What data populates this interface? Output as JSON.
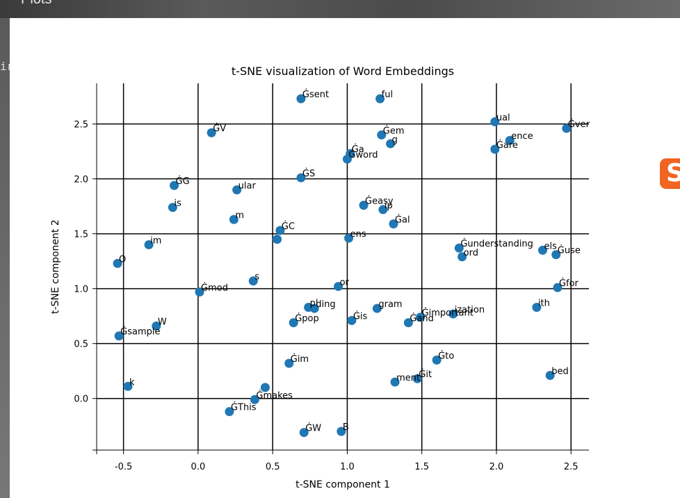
{
  "page": {
    "window_title": "Plots",
    "left_clip_text": "ir",
    "side_logo_letter": "S"
  },
  "chart_data": {
    "type": "scatter",
    "title": "t-SNE visualization of Word Embeddings",
    "xlabel": "t-SNE component 1",
    "ylabel": "t-SNE component 2",
    "xlim": [
      -0.68,
      2.62
    ],
    "ylim": [
      -0.47,
      2.87
    ],
    "xticks": [
      -0.5,
      0.0,
      0.5,
      1.0,
      1.5,
      2.0,
      2.5
    ],
    "xtick_labels": [
      "-0.5",
      "0.0",
      "0.5",
      "1.0",
      "1.5",
      "2.0",
      "2.5"
    ],
    "yticks": [
      0.0,
      0.5,
      1.0,
      1.5,
      2.0,
      2.5
    ],
    "ytick_labels": [
      "0.0",
      "0.5",
      "1.0",
      "1.5",
      "2.0",
      "2.5"
    ],
    "grid": true,
    "point_color": "#1f77b4",
    "points": [
      {
        "label": "Ġsent",
        "x": 0.69,
        "y": 2.73
      },
      {
        "label": "ful",
        "x": 1.22,
        "y": 2.73
      },
      {
        "label": "ual",
        "x": 1.99,
        "y": 2.52
      },
      {
        "label": "Ġver",
        "x": 2.47,
        "y": 2.46
      },
      {
        "label": "ĠV",
        "x": 0.09,
        "y": 2.42
      },
      {
        "label": "Ġem",
        "x": 1.23,
        "y": 2.4
      },
      {
        "label": "ence",
        "x": 2.09,
        "y": 2.35
      },
      {
        "label": "g",
        "x": 1.29,
        "y": 2.32
      },
      {
        "label": "Ġare",
        "x": 1.99,
        "y": 2.27
      },
      {
        "label": "Ġa",
        "x": 1.02,
        "y": 2.23
      },
      {
        "label": "Ġword",
        "x": 1.0,
        "y": 2.18
      },
      {
        "label": "ĠS",
        "x": 0.69,
        "y": 2.01
      },
      {
        "label": "ĠG",
        "x": -0.16,
        "y": 1.94
      },
      {
        "label": "ular",
        "x": 0.26,
        "y": 1.9
      },
      {
        "label": "Ġeasy",
        "x": 1.11,
        "y": 1.76
      },
      {
        "label": "is",
        "x": -0.17,
        "y": 1.74
      },
      {
        "label": "ip",
        "x": 1.24,
        "y": 1.72
      },
      {
        "label": "m",
        "x": 0.24,
        "y": 1.63
      },
      {
        "label": "Ġal",
        "x": 1.31,
        "y": 1.59
      },
      {
        "label": "ĠC",
        "x": 0.55,
        "y": 1.53
      },
      {
        "label": "ens",
        "x": 1.01,
        "y": 1.46
      },
      {
        "label": "",
        "x": 0.53,
        "y": 1.45
      },
      {
        "label": "im",
        "x": -0.33,
        "y": 1.4
      },
      {
        "label": "Ġunderstanding",
        "x": 1.75,
        "y": 1.37
      },
      {
        "label": "els",
        "x": 2.31,
        "y": 1.35
      },
      {
        "label": "Ġuse",
        "x": 2.4,
        "y": 1.31
      },
      {
        "label": "ord",
        "x": 1.77,
        "y": 1.29
      },
      {
        "label": "O",
        "x": -0.54,
        "y": 1.23
      },
      {
        "label": "s",
        "x": 0.37,
        "y": 1.07
      },
      {
        "label": "or",
        "x": 0.94,
        "y": 1.02
      },
      {
        "label": "Ġfor",
        "x": 2.41,
        "y": 1.01
      },
      {
        "label": "Ġmod",
        "x": 0.01,
        "y": 0.97
      },
      {
        "label": "pl",
        "x": 0.74,
        "y": 0.83
      },
      {
        "label": "ding",
        "x": 0.78,
        "y": 0.82
      },
      {
        "label": "gram",
        "x": 1.2,
        "y": 0.82
      },
      {
        "label": "ith",
        "x": 2.27,
        "y": 0.83
      },
      {
        "label": "ization",
        "x": 1.71,
        "y": 0.77
      },
      {
        "label": "Ġimportant",
        "x": 1.49,
        "y": 0.74
      },
      {
        "label": "Ġis",
        "x": 1.03,
        "y": 0.71
      },
      {
        "label": "Ġand",
        "x": 1.41,
        "y": 0.69
      },
      {
        "label": "Ġpop",
        "x": 0.64,
        "y": 0.69
      },
      {
        "label": "W",
        "x": -0.28,
        "y": 0.66
      },
      {
        "label": "Ġsample",
        "x": -0.53,
        "y": 0.57
      },
      {
        "label": "Ġto",
        "x": 1.6,
        "y": 0.35
      },
      {
        "label": "Ġim",
        "x": 0.61,
        "y": 0.32
      },
      {
        "label": "bed",
        "x": 2.36,
        "y": 0.21
      },
      {
        "label": "Ġit",
        "x": 1.47,
        "y": 0.18
      },
      {
        "label": "ment",
        "x": 1.32,
        "y": 0.15
      },
      {
        "label": "k",
        "x": -0.47,
        "y": 0.11
      },
      {
        "label": "",
        "x": 0.45,
        "y": 0.1
      },
      {
        "label": "Ġmakes",
        "x": 0.38,
        "y": -0.01
      },
      {
        "label": "ĠThis",
        "x": 0.21,
        "y": -0.12
      },
      {
        "label": "ĠW",
        "x": 0.71,
        "y": -0.31
      },
      {
        "label": "B",
        "x": 0.96,
        "y": -0.3
      }
    ]
  }
}
